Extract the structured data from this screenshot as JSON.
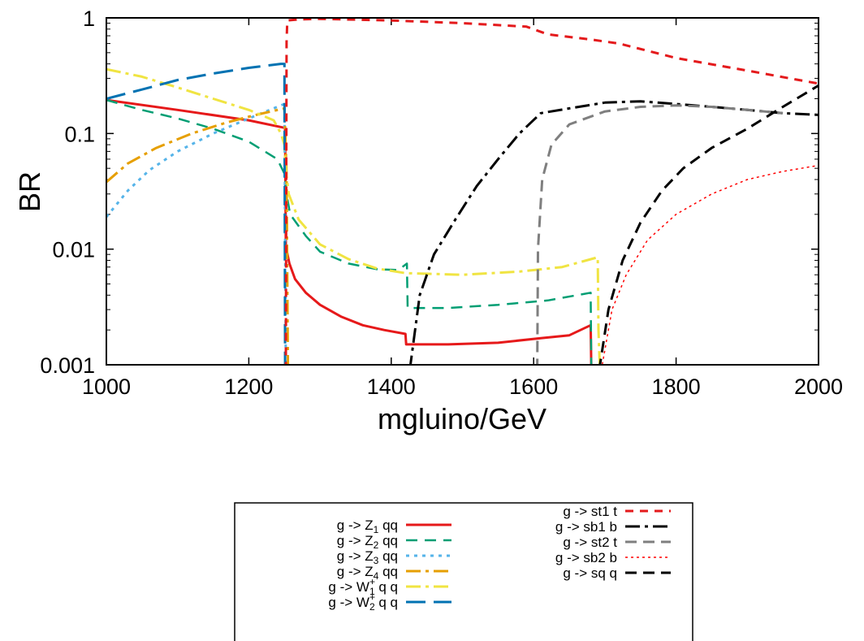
{
  "chart_data": {
    "type": "line",
    "title": "",
    "xlabel": "mgluino/GeV",
    "ylabel": "BR",
    "xlim": [
      1000,
      2000
    ],
    "ylim": [
      0.001,
      1
    ],
    "yscale": "log",
    "grid": false,
    "legend_placement": "below",
    "x_ticks": [
      "1000",
      "1200",
      "1400",
      "1600",
      "1800",
      "2000"
    ],
    "y_ticks": [
      "0.001",
      "0.01",
      "0.1",
      "1"
    ],
    "series": [
      {
        "name": "g -> Z1 qq",
        "sym": "Z",
        "sub": "1",
        "sup": "",
        "rest": " qq",
        "color": "#e6191a",
        "dash": "",
        "width": 3,
        "points": [
          [
            1000,
            0.195
          ],
          [
            1100,
            0.16
          ],
          [
            1200,
            0.13
          ],
          [
            1250,
            0.112
          ],
          [
            1251,
            0.112
          ],
          [
            1252,
            0.0105
          ],
          [
            1257,
            0.0075
          ],
          [
            1265,
            0.0055
          ],
          [
            1280,
            0.0042
          ],
          [
            1300,
            0.0033
          ],
          [
            1330,
            0.0026
          ],
          [
            1360,
            0.0022
          ],
          [
            1390,
            0.002
          ],
          [
            1420,
            0.00185
          ],
          [
            1421,
            0.0015
          ],
          [
            1480,
            0.0015
          ],
          [
            1550,
            0.00155
          ],
          [
            1610,
            0.0017
          ],
          [
            1650,
            0.0018
          ],
          [
            1680,
            0.0022
          ],
          [
            1681,
            0.0009
          ]
        ]
      },
      {
        "name": "g -> Z2 qq",
        "sym": "Z",
        "sub": "2",
        "sup": "",
        "rest": " qq",
        "color": "#009e73",
        "dash": "14,9",
        "width": 2.5,
        "points": [
          [
            1000,
            0.195
          ],
          [
            1050,
            0.16
          ],
          [
            1100,
            0.135
          ],
          [
            1150,
            0.11
          ],
          [
            1200,
            0.085
          ],
          [
            1240,
            0.06
          ],
          [
            1250,
            0.045
          ],
          [
            1253,
            0.03
          ],
          [
            1258,
            0.02
          ],
          [
            1280,
            0.013
          ],
          [
            1300,
            0.0095
          ],
          [
            1340,
            0.0075
          ],
          [
            1380,
            0.0067
          ],
          [
            1410,
            0.0066
          ],
          [
            1422,
            0.0075
          ],
          [
            1423,
            0.0031
          ],
          [
            1480,
            0.0031
          ],
          [
            1550,
            0.0033
          ],
          [
            1620,
            0.0036
          ],
          [
            1680,
            0.0042
          ],
          [
            1681,
            0.0009
          ]
        ]
      },
      {
        "name": "g -> Z3 qq",
        "sym": "Z",
        "sub": "3",
        "sup": "",
        "rest": " qq",
        "color": "#56b4e9",
        "dash": "4,6",
        "width": 3,
        "points": [
          [
            1000,
            0.019
          ],
          [
            1030,
            0.032
          ],
          [
            1060,
            0.048
          ],
          [
            1100,
            0.07
          ],
          [
            1150,
            0.1
          ],
          [
            1200,
            0.135
          ],
          [
            1240,
            0.17
          ],
          [
            1250,
            0.18
          ],
          [
            1252,
            0.0009
          ]
        ]
      },
      {
        "name": "g -> Z4 qq",
        "sym": "Z",
        "sub": "4",
        "sup": "",
        "rest": " qq",
        "color": "#e69f00",
        "dash": "18,6,4,6",
        "width": 3,
        "points": [
          [
            1000,
            0.038
          ],
          [
            1030,
            0.055
          ],
          [
            1070,
            0.075
          ],
          [
            1120,
            0.1
          ],
          [
            1170,
            0.125
          ],
          [
            1210,
            0.145
          ],
          [
            1250,
            0.165
          ],
          [
            1253,
            0.045
          ],
          [
            1255,
            0.0009
          ]
        ]
      },
      {
        "name": "g -> W1+ q q",
        "sym": "W",
        "sub": "1",
        "sup": "+",
        "rest": " q q",
        "color": "#f0e442",
        "dash": "18,6,4,6",
        "width": 3,
        "points": [
          [
            1000,
            0.36
          ],
          [
            1050,
            0.31
          ],
          [
            1100,
            0.25
          ],
          [
            1150,
            0.2
          ],
          [
            1200,
            0.16
          ],
          [
            1235,
            0.13
          ],
          [
            1245,
            0.1
          ],
          [
            1250,
            0.08
          ],
          [
            1252,
            0.05
          ],
          [
            1256,
            0.03
          ],
          [
            1270,
            0.018
          ],
          [
            1300,
            0.011
          ],
          [
            1340,
            0.0082
          ],
          [
            1380,
            0.0068
          ],
          [
            1420,
            0.0062
          ],
          [
            1500,
            0.006
          ],
          [
            1580,
            0.0064
          ],
          [
            1640,
            0.007
          ],
          [
            1690,
            0.0085
          ],
          [
            1691,
            0.002
          ],
          [
            1693,
            0.0009
          ]
        ]
      },
      {
        "name": "g -> W2+ q q",
        "sym": "W",
        "sub": "2",
        "sup": "+",
        "rest": " q q",
        "color": "#0072b2",
        "dash": "24,10",
        "width": 3,
        "points": [
          [
            1000,
            0.2
          ],
          [
            1050,
            0.24
          ],
          [
            1100,
            0.29
          ],
          [
            1150,
            0.33
          ],
          [
            1200,
            0.37
          ],
          [
            1245,
            0.4
          ],
          [
            1250,
            0.4
          ],
          [
            1251,
            0.0009
          ]
        ]
      },
      {
        "name": "g -> st1 t",
        "sym": "",
        "sub": "",
        "sup": "",
        "rest": "g -> st1 t",
        "color": "#e41a1c",
        "dash": "10,8",
        "width": 3,
        "points": [
          [
            1252,
            0.0009
          ],
          [
            1253,
            0.62
          ],
          [
            1254,
            0.95
          ],
          [
            1270,
            0.97
          ],
          [
            1300,
            0.98
          ],
          [
            1400,
            0.95
          ],
          [
            1500,
            0.9
          ],
          [
            1590,
            0.84
          ],
          [
            1620,
            0.72
          ],
          [
            1680,
            0.65
          ],
          [
            1720,
            0.6
          ],
          [
            1800,
            0.45
          ],
          [
            1900,
            0.35
          ],
          [
            2000,
            0.27
          ]
        ]
      },
      {
        "name": "g -> sb1 b",
        "sym": "",
        "sub": "",
        "sup": "",
        "rest": "g -> sb1 b",
        "color": "#000000",
        "dash": "18,6,4,6",
        "width": 3,
        "points": [
          [
            1426,
            0.0009
          ],
          [
            1440,
            0.004
          ],
          [
            1460,
            0.009
          ],
          [
            1490,
            0.018
          ],
          [
            1520,
            0.035
          ],
          [
            1550,
            0.06
          ],
          [
            1580,
            0.1
          ],
          [
            1610,
            0.15
          ],
          [
            1650,
            0.165
          ],
          [
            1700,
            0.185
          ],
          [
            1750,
            0.19
          ],
          [
            1800,
            0.18
          ],
          [
            1850,
            0.17
          ],
          [
            1900,
            0.16
          ],
          [
            1950,
            0.15
          ],
          [
            2000,
            0.145
          ]
        ]
      },
      {
        "name": "g -> st2 t",
        "sym": "",
        "sub": "",
        "sup": "",
        "rest": "g -> st2 t",
        "color": "#7f7f7f",
        "dash": "14,8",
        "width": 3,
        "points": [
          [
            1605,
            0.0009
          ],
          [
            1606,
            0.01
          ],
          [
            1612,
            0.04
          ],
          [
            1625,
            0.08
          ],
          [
            1650,
            0.12
          ],
          [
            1700,
            0.155
          ],
          [
            1750,
            0.17
          ],
          [
            1800,
            0.175
          ],
          [
            1850,
            0.17
          ],
          [
            1900,
            0.16
          ],
          [
            1950,
            0.15
          ]
        ]
      },
      {
        "name": "g -> sb2 b",
        "sym": "",
        "sub": "",
        "sup": "",
        "rest": "g -> sb2 b",
        "color": "#ff0000",
        "dash": "3,4",
        "width": 1.5,
        "points": [
          [
            1695,
            0.0009
          ],
          [
            1710,
            0.003
          ],
          [
            1730,
            0.006
          ],
          [
            1760,
            0.012
          ],
          [
            1800,
            0.02
          ],
          [
            1850,
            0.03
          ],
          [
            1900,
            0.04
          ],
          [
            1950,
            0.047
          ],
          [
            2000,
            0.053
          ]
        ]
      },
      {
        "name": "g -> sq q",
        "sym": "",
        "sub": "",
        "sup": "",
        "rest": "g -> sq q",
        "color": "#000000",
        "dash": "14,8",
        "width": 3,
        "points": [
          [
            1692,
            0.0009
          ],
          [
            1705,
            0.003
          ],
          [
            1725,
            0.008
          ],
          [
            1750,
            0.017
          ],
          [
            1780,
            0.032
          ],
          [
            1810,
            0.05
          ],
          [
            1850,
            0.075
          ],
          [
            1900,
            0.11
          ],
          [
            1950,
            0.17
          ],
          [
            2000,
            0.26
          ]
        ]
      }
    ]
  }
}
